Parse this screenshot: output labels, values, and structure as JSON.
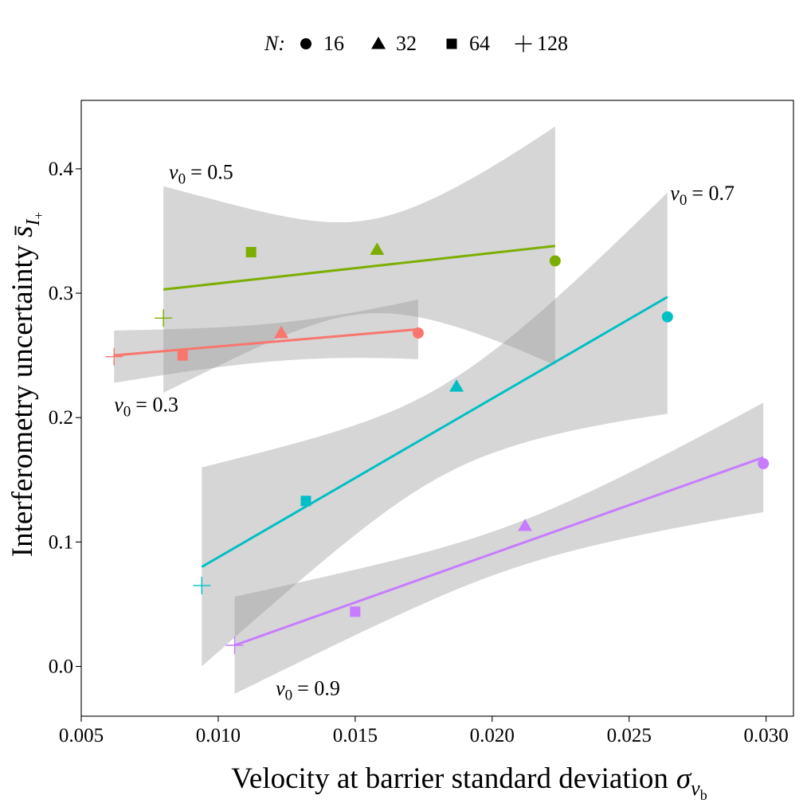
{
  "chart_data": {
    "type": "scatter",
    "xlabel": "Velocity at barrier standard deviation",
    "xlabel_symbol": "σ",
    "xlabel_subscript": "v",
    "xlabel_subsubscript": "b",
    "ylabel": "Interferometry uncertainty",
    "ylabel_symbol": "s̄",
    "ylabel_subscript": "I",
    "ylabel_subsubscript": "+",
    "xlim": [
      0.005,
      0.031
    ],
    "ylim": [
      -0.04,
      0.455
    ],
    "x_ticks": [
      0.005,
      0.01,
      0.015,
      0.02,
      0.025,
      0.03
    ],
    "x_tick_labels": [
      "0.005",
      "0.010",
      "0.015",
      "0.020",
      "0.025",
      "0.030"
    ],
    "y_ticks": [
      0.0,
      0.1,
      0.2,
      0.3,
      0.4
    ],
    "y_tick_labels": [
      "0.0",
      "0.1",
      "0.2",
      "0.3",
      "0.4"
    ],
    "grid": false,
    "legend": {
      "title": "N:",
      "placement": "top",
      "entries": [
        {
          "label": "16",
          "shape": "circle"
        },
        {
          "label": "32",
          "shape": "triangle"
        },
        {
          "label": "64",
          "shape": "square"
        },
        {
          "label": "128",
          "shape": "plus"
        }
      ]
    },
    "series": [
      {
        "label_prefix": "v",
        "label_sub": "0",
        "label_value": "= 0.3",
        "color": "#F8766D",
        "points": [
          {
            "x": 0.0062,
            "y": 0.249,
            "shape": "plus"
          },
          {
            "x": 0.0087,
            "y": 0.25,
            "shape": "square"
          },
          {
            "x": 0.0123,
            "y": 0.268,
            "shape": "triangle"
          },
          {
            "x": 0.0173,
            "y": 0.268,
            "shape": "circle"
          }
        ],
        "fit": {
          "x": [
            0.0062,
            0.0173
          ],
          "y": [
            0.25,
            0.271
          ]
        },
        "ci_band": {
          "x": [
            0.0062,
            0.0173
          ],
          "lower": [
            0.228,
            0.247
          ],
          "upper": [
            0.27,
            0.295
          ],
          "curvature": 0.5
        },
        "annotation_anchor": {
          "x": 0.0062,
          "y": 0.205
        }
      },
      {
        "label_prefix": "v",
        "label_sub": "0",
        "label_value": "= 0.5",
        "color": "#7CAE00",
        "points": [
          {
            "x": 0.008,
            "y": 0.28,
            "shape": "plus"
          },
          {
            "x": 0.0112,
            "y": 0.333,
            "shape": "square"
          },
          {
            "x": 0.0158,
            "y": 0.335,
            "shape": "triangle"
          },
          {
            "x": 0.0223,
            "y": 0.326,
            "shape": "circle"
          }
        ],
        "fit": {
          "x": [
            0.008,
            0.0223
          ],
          "y": [
            0.303,
            0.338
          ]
        },
        "ci_band": {
          "x": [
            0.008,
            0.0223
          ],
          "lower": [
            0.22,
            0.242
          ],
          "upper": [
            0.386,
            0.434
          ],
          "curvature": 1
        },
        "annotation_anchor": {
          "x": 0.0082,
          "y": 0.392
        }
      },
      {
        "label_prefix": "v",
        "label_sub": "0",
        "label_value": "= 0.7",
        "color": "#00BFC4",
        "points": [
          {
            "x": 0.0094,
            "y": 0.065,
            "shape": "plus"
          },
          {
            "x": 0.0132,
            "y": 0.133,
            "shape": "square"
          },
          {
            "x": 0.0187,
            "y": 0.225,
            "shape": "triangle"
          },
          {
            "x": 0.0264,
            "y": 0.281,
            "shape": "circle"
          }
        ],
        "fit": {
          "x": [
            0.0094,
            0.0264
          ],
          "y": [
            0.08,
            0.297
          ]
        },
        "ci_band": {
          "x": [
            0.0094,
            0.0264
          ],
          "lower": [
            -0.0,
            0.203
          ],
          "upper": [
            0.16,
            0.381
          ],
          "curvature": 1
        },
        "annotation_anchor": {
          "x": 0.0265,
          "y": 0.375
        }
      },
      {
        "label_prefix": "v",
        "label_sub": "0",
        "label_value": "= 0.9",
        "color": "#C77CFF",
        "points": [
          {
            "x": 0.0106,
            "y": 0.017,
            "shape": "plus"
          },
          {
            "x": 0.015,
            "y": 0.044,
            "shape": "square"
          },
          {
            "x": 0.0212,
            "y": 0.113,
            "shape": "triangle"
          },
          {
            "x": 0.0299,
            "y": 0.163,
            "shape": "circle"
          }
        ],
        "fit": {
          "x": [
            0.0106,
            0.0299
          ],
          "y": [
            0.017,
            0.168
          ]
        },
        "ci_band": {
          "x": [
            0.0106,
            0.0299
          ],
          "lower": [
            -0.022,
            0.124
          ],
          "upper": [
            0.056,
            0.212
          ],
          "curvature": 1
        },
        "annotation_anchor": {
          "x": 0.0121,
          "y": -0.023
        }
      }
    ]
  }
}
